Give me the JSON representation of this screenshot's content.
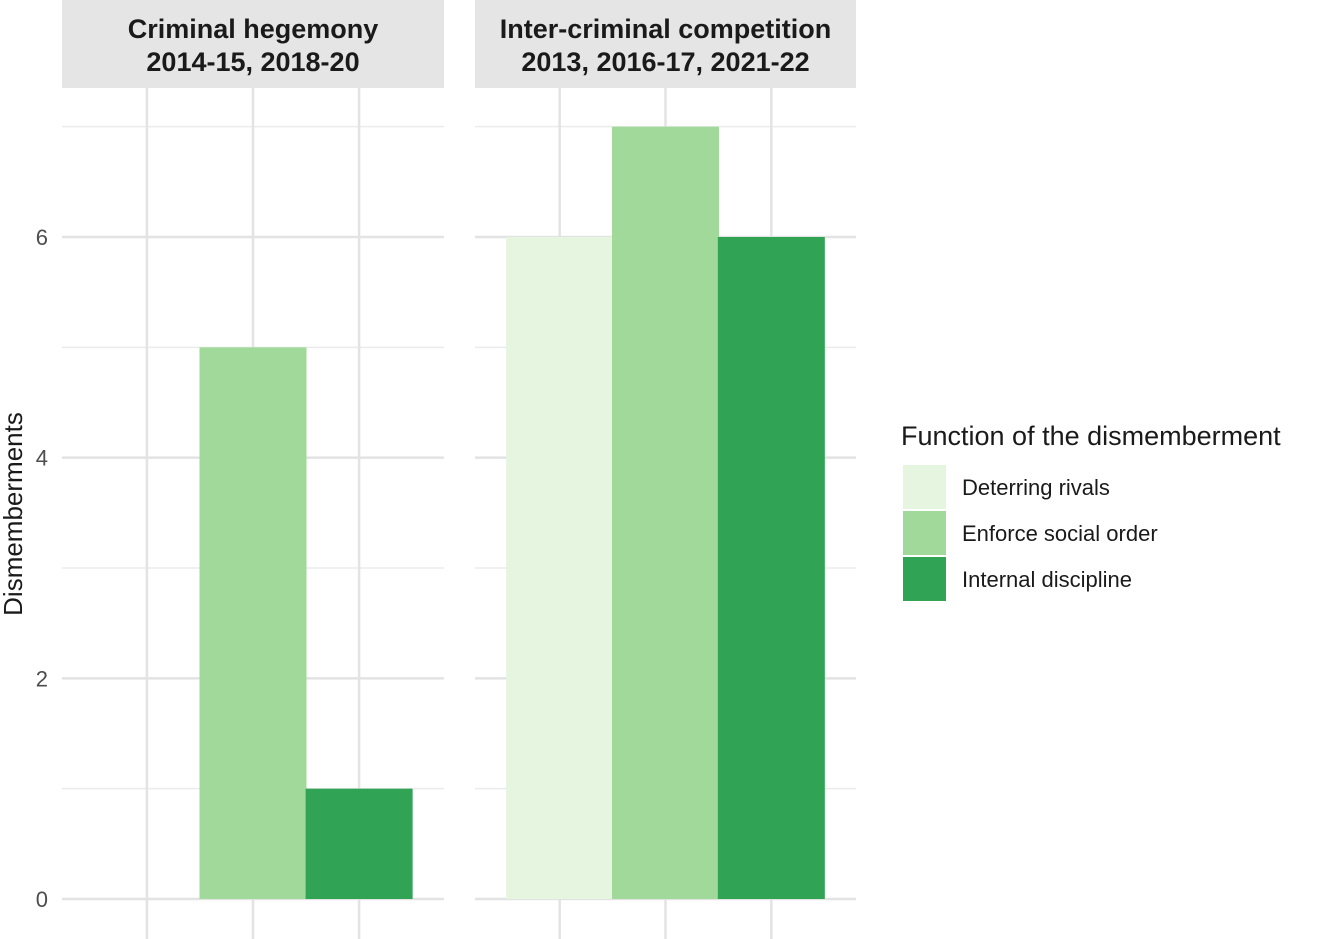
{
  "chart_data": {
    "type": "bar",
    "ylabel": "Dismemberments",
    "ylim": [
      0,
      7.2
    ],
    "yticks": [
      0,
      2,
      4,
      6
    ],
    "grid": true,
    "legend": {
      "title": "Function of the dismemberment",
      "placement": "right",
      "entries": [
        {
          "label": "Deterring rivals",
          "color": "#e5f5e0"
        },
        {
          "label": "Enforce social order",
          "color": "#a1d99b"
        },
        {
          "label": "Internal discipline",
          "color": "#31a354"
        }
      ]
    },
    "categories": [
      "Deterring rivals",
      "Enforce social order",
      "Internal discipline"
    ],
    "panels": [
      {
        "title_line1": "Criminal hegemony",
        "title_line2": "2014-15, 2018-20",
        "values": [
          0,
          5,
          1
        ]
      },
      {
        "title_line1": "Inter-criminal competition",
        "title_line2": "2013, 2016-17, 2021-22",
        "values": [
          6,
          7,
          6
        ]
      }
    ]
  }
}
